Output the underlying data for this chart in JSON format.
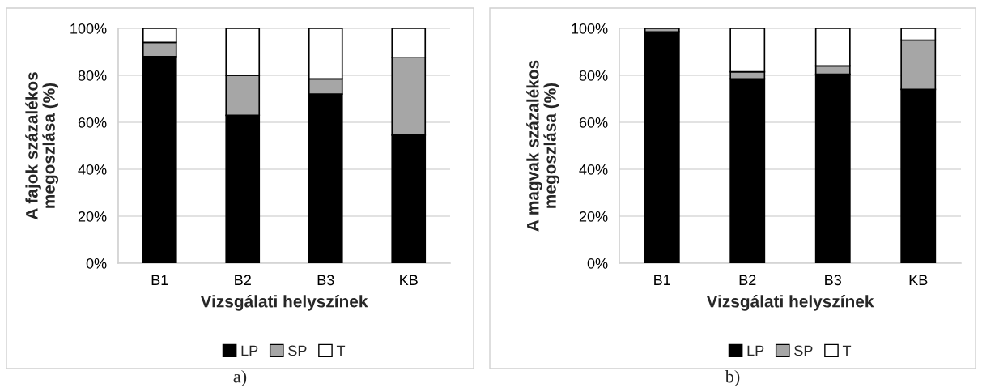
{
  "chart_data": [
    {
      "type": "bar",
      "stacked": true,
      "xlabel": "Vizsgálati helyszínek",
      "ylabel": "A fajok százalékos\nmegoszlása (%)",
      "categories": [
        "B1",
        "B2",
        "B3",
        "KB"
      ],
      "series": [
        {
          "name": "LP",
          "color": "#000000",
          "values": [
            88,
            63,
            72,
            54.5
          ]
        },
        {
          "name": "SP",
          "color": "#a6a6a6",
          "values": [
            6,
            17,
            6.5,
            33
          ]
        },
        {
          "name": "T",
          "color": "#ffffff",
          "values": [
            6,
            20,
            21.5,
            12.5
          ]
        }
      ],
      "ylim": [
        0,
        100
      ],
      "yticks": [
        {
          "value": 0,
          "label": "0%"
        },
        {
          "value": 20,
          "label": "20%"
        },
        {
          "value": 40,
          "label": "40%"
        },
        {
          "value": 60,
          "label": "60%"
        },
        {
          "value": 80,
          "label": "80%"
        },
        {
          "value": 100,
          "label": "100%"
        }
      ],
      "grid": "y",
      "legend": "bottom",
      "annotations": [
        "a)"
      ]
    },
    {
      "type": "bar",
      "stacked": true,
      "xlabel": "Vizsgálati helyszínek",
      "ylabel": "A magvak százalékos\nmegoszlása (%)",
      "categories": [
        "B1",
        "B2",
        "B3",
        "KB"
      ],
      "series": [
        {
          "name": "LP",
          "color": "#000000",
          "values": [
            98.5,
            78.5,
            80.5,
            74
          ]
        },
        {
          "name": "SP",
          "color": "#a6a6a6",
          "values": [
            1.5,
            3,
            3.5,
            21
          ]
        },
        {
          "name": "T",
          "color": "#ffffff",
          "values": [
            0,
            18.5,
            16,
            5
          ]
        }
      ],
      "ylim": [
        0,
        100
      ],
      "yticks": [
        {
          "value": 0,
          "label": "0%"
        },
        {
          "value": 20,
          "label": "20%"
        },
        {
          "value": 40,
          "label": "40%"
        },
        {
          "value": 60,
          "label": "60%"
        },
        {
          "value": 80,
          "label": "80%"
        },
        {
          "value": 100,
          "label": "100%"
        }
      ],
      "grid": "y",
      "legend": "bottom",
      "annotations": [
        "b)"
      ]
    }
  ]
}
